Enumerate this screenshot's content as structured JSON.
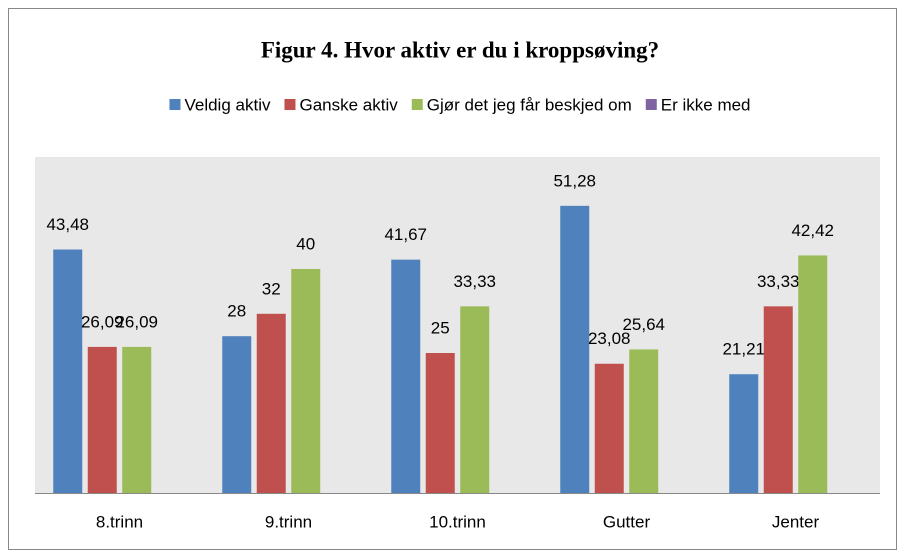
{
  "chart_data": {
    "type": "bar",
    "title": "Figur 4. Hvor aktiv er du i kroppsøving?",
    "categories": [
      "8.trinn",
      "9.trinn",
      "10.trinn",
      "Gutter",
      "Jenter"
    ],
    "series": [
      {
        "name": "Veldig aktiv",
        "color": "#4f81bd",
        "values": [
          43.48,
          28,
          41.67,
          51.28,
          21.21
        ],
        "value_labels": [
          "43,48",
          "28",
          "41,67",
          "51,28",
          "21,21"
        ]
      },
      {
        "name": "Ganske aktiv",
        "color": "#c0504d",
        "values": [
          26.09,
          32,
          25,
          23.08,
          33.33
        ],
        "value_labels": [
          "26,09",
          "32",
          "25",
          "23,08",
          "33,33"
        ]
      },
      {
        "name": "Gjør det jeg får beskjed om",
        "color": "#9bbb59",
        "values": [
          26.09,
          40,
          33.33,
          25.64,
          42.42
        ],
        "value_labels": [
          "26,09",
          "40",
          "33,33",
          "25,64",
          "42,42"
        ]
      },
      {
        "name": "Er ikke med",
        "color": "#8064a2",
        "values": [
          null,
          null,
          null,
          null,
          null
        ]
      }
    ],
    "ylim": [
      0,
      60
    ],
    "legend": "top"
  }
}
